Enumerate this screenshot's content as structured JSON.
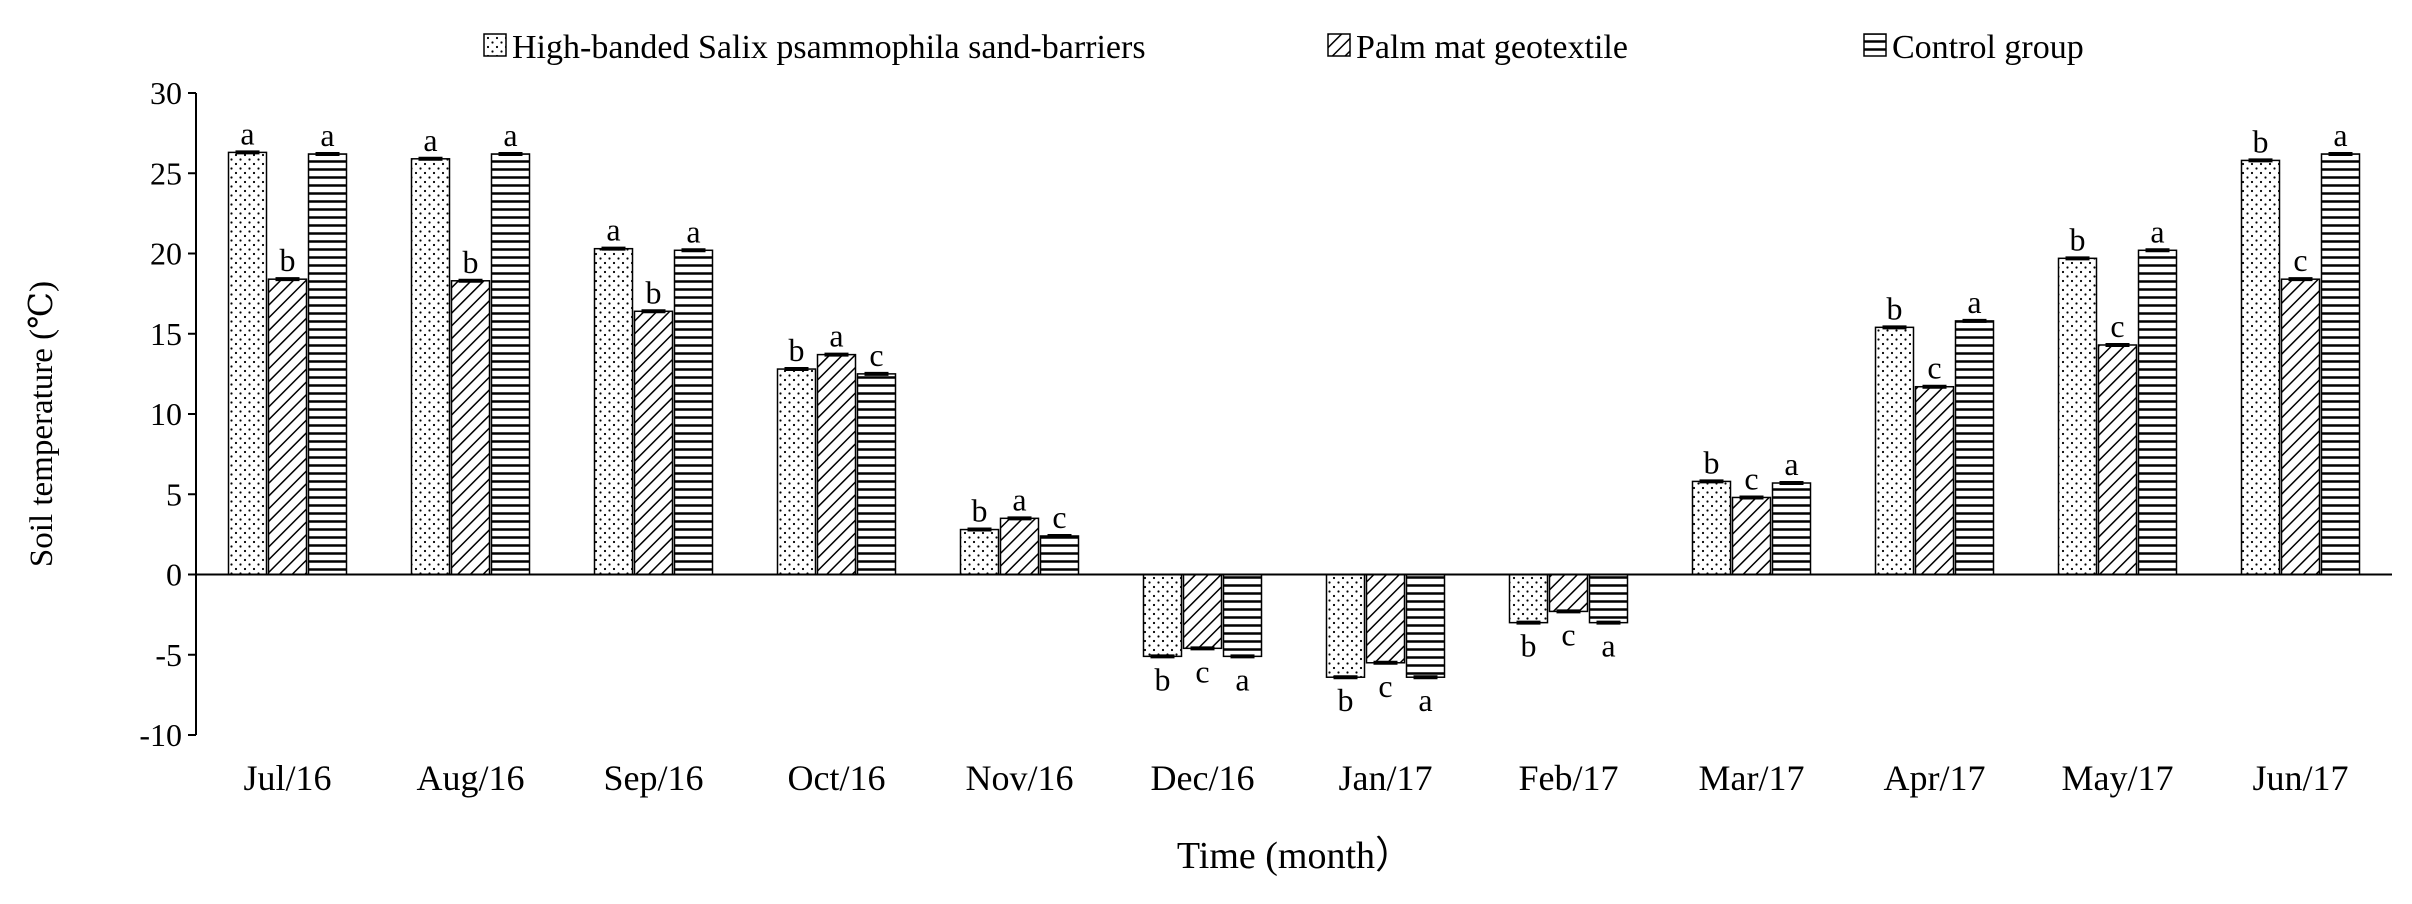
{
  "chart_data": {
    "type": "bar",
    "title": "",
    "xlabel": "Time (month）",
    "ylabel": "Soil temperature (℃)",
    "ylim": [
      -10,
      30
    ],
    "yticks": [
      -10,
      -5,
      0,
      5,
      10,
      15,
      20,
      25,
      30
    ],
    "grid": false,
    "legend_position": "top",
    "categories": [
      "Jul/16",
      "Aug/16",
      "Sep/16",
      "Oct/16",
      "Nov/16",
      "Dec/16",
      "Jan/17",
      "Feb/17",
      "Mar/17",
      "Apr/17",
      "May/17",
      "Jun/17"
    ],
    "series": [
      {
        "name": "High-banded Salix psammophila sand-barriers",
        "pattern": "dots",
        "values": [
          26.3,
          25.9,
          20.3,
          12.8,
          2.8,
          -5.1,
          -6.4,
          -3.0,
          5.8,
          15.4,
          19.7,
          25.8
        ],
        "labels": [
          "a",
          "a",
          "a",
          "b",
          "b",
          "b",
          "b",
          "b",
          "b",
          "b",
          "b",
          "b"
        ]
      },
      {
        "name": "Palm mat geotextile",
        "pattern": "diagonal",
        "values": [
          18.4,
          18.3,
          16.4,
          13.7,
          3.5,
          -4.6,
          -5.5,
          -2.3,
          4.8,
          11.7,
          14.3,
          18.4
        ],
        "labels": [
          "b",
          "b",
          "b",
          "a",
          "a",
          "c",
          "c",
          "c",
          "c",
          "c",
          "c",
          "c"
        ]
      },
      {
        "name": "Control group",
        "pattern": "horizontal",
        "values": [
          26.2,
          26.2,
          20.2,
          12.5,
          2.4,
          -5.1,
          -6.4,
          -3.0,
          5.7,
          15.8,
          20.2,
          26.2
        ],
        "labels": [
          "a",
          "a",
          "a",
          "c",
          "c",
          "a",
          "a",
          "a",
          "a",
          "a",
          "a",
          "a"
        ]
      }
    ]
  }
}
